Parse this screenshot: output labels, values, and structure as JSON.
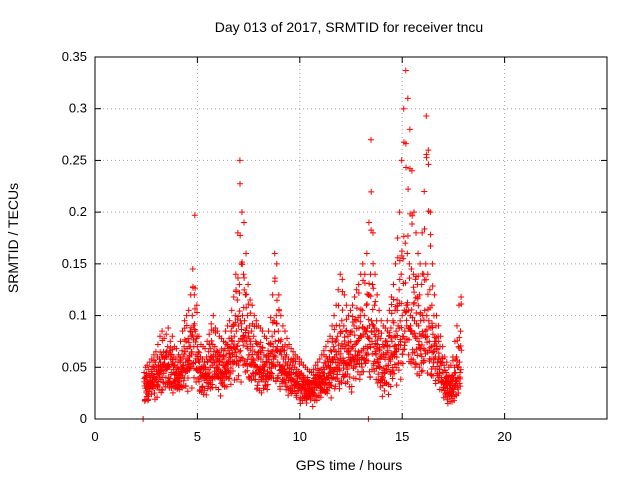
{
  "chart_data": {
    "type": "scatter",
    "title": "Day 013 of 2017, SRMTID for receiver tncu",
    "xlabel": "GPS time / hours",
    "ylabel": "SRMTID / TECUs",
    "xlim": [
      0,
      25
    ],
    "ylim": [
      0,
      0.35
    ],
    "xticks": [
      0,
      5,
      10,
      15,
      20
    ],
    "xtick_labels": [
      "0",
      "5",
      "10",
      "15",
      "20"
    ],
    "yticks": [
      0,
      0.05,
      0.1,
      0.15,
      0.2,
      0.25,
      0.3,
      0.35
    ],
    "ytick_labels": [
      "0",
      "0.05",
      "0.1",
      "0.15",
      "0.2",
      "0.25",
      "0.3",
      "0.35"
    ],
    "grid": true,
    "marker": "+",
    "series": [
      {
        "name": "SRMTID",
        "color": "#ff0000",
        "x_start": 2.4,
        "x_step": 0.025,
        "values": [
          0.045,
          0.032,
          0.04,
          0.05,
          0.038,
          0.044,
          0.052,
          0.036,
          0.03,
          0.048,
          0.042,
          0.055,
          0.04,
          0.035,
          0.046,
          0.058,
          0.044,
          0.038,
          0.05,
          0.062,
          0.048,
          0.04,
          0.055,
          0.065,
          0.05,
          0.043,
          0.06,
          0.072,
          0.052,
          0.045,
          0.058,
          0.08,
          0.055,
          0.046,
          0.062,
          0.085,
          0.06,
          0.05,
          0.065,
          0.078,
          0.058,
          0.048,
          0.064,
          0.082,
          0.06,
          0.052,
          0.07,
          0.088,
          0.062,
          0.05,
          0.066,
          0.075,
          0.058,
          0.045,
          0.062,
          0.08,
          0.055,
          0.048,
          0.06,
          0.07,
          0.052,
          0.044,
          0.058,
          0.068,
          0.05,
          0.04,
          0.055,
          0.062,
          0.048,
          0.042,
          0.06,
          0.075,
          0.058,
          0.05,
          0.066,
          0.085,
          0.06,
          0.052,
          0.07,
          0.095,
          0.065,
          0.055,
          0.075,
          0.1,
          0.068,
          0.055,
          0.078,
          0.105,
          0.07,
          0.06,
          0.085,
          0.12,
          0.08,
          0.065,
          0.1,
          0.145,
          0.09,
          0.07,
          0.12,
          0.197,
          0.085,
          0.062,
          0.078,
          0.11,
          0.07,
          0.058,
          0.065,
          0.08,
          0.055,
          0.045,
          0.06,
          0.072,
          0.05,
          0.042,
          0.058,
          0.07,
          0.048,
          0.04,
          0.055,
          0.068,
          0.05,
          0.044,
          0.06,
          0.075,
          0.055,
          0.048,
          0.065,
          0.082,
          0.058,
          0.05,
          0.068,
          0.092,
          0.06,
          0.052,
          0.072,
          0.1,
          0.065,
          0.055,
          0.07,
          0.088,
          0.06,
          0.05,
          0.066,
          0.085,
          0.058,
          0.048,
          0.064,
          0.08,
          0.056,
          0.046,
          0.062,
          0.078,
          0.055,
          0.045,
          0.06,
          0.075,
          0.058,
          0.05,
          0.068,
          0.085,
          0.062,
          0.054,
          0.072,
          0.09,
          0.066,
          0.056,
          0.078,
          0.095,
          0.07,
          0.06,
          0.085,
          0.105,
          0.075,
          0.064,
          0.09,
          0.118,
          0.08,
          0.068,
          0.1,
          0.14,
          0.085,
          0.07,
          0.115,
          0.18,
          0.09,
          0.075,
          0.13,
          0.25,
          0.095,
          0.078,
          0.15,
          0.2,
          0.1,
          0.08,
          0.14,
          0.19,
          0.095,
          0.075,
          0.12,
          0.16,
          0.088,
          0.07,
          0.1,
          0.13,
          0.08,
          0.062,
          0.09,
          0.115,
          0.075,
          0.058,
          0.085,
          0.11,
          0.07,
          0.055,
          0.08,
          0.1,
          0.065,
          0.052,
          0.075,
          0.095,
          0.062,
          0.05,
          0.072,
          0.09,
          0.06,
          0.048,
          0.07,
          0.088,
          0.058,
          0.045,
          0.066,
          0.085,
          0.055,
          0.044,
          0.062,
          0.08,
          0.052,
          0.042,
          0.06,
          0.078,
          0.055,
          0.046,
          0.066,
          0.085,
          0.06,
          0.05,
          0.072,
          0.098,
          0.065,
          0.054,
          0.08,
          0.12,
          0.07,
          0.058,
          0.095,
          0.16,
          0.075,
          0.06,
          0.1,
          0.15,
          0.07,
          0.055,
          0.085,
          0.12,
          0.065,
          0.052,
          0.075,
          0.1,
          0.062,
          0.05,
          0.07,
          0.09,
          0.058,
          0.048,
          0.066,
          0.085,
          0.055,
          0.045,
          0.062,
          0.078,
          0.052,
          0.042,
          0.058,
          0.072,
          0.05,
          0.04,
          0.055,
          0.068,
          0.048,
          0.038,
          0.052,
          0.065,
          0.045,
          0.036,
          0.05,
          0.062,
          0.044,
          0.035,
          0.048,
          0.06,
          0.042,
          0.034,
          0.046,
          0.058,
          0.04,
          0.032,
          0.044,
          0.055,
          0.038,
          0.03,
          0.042,
          0.052,
          0.036,
          0.028,
          0.04,
          0.05,
          0.035,
          0.027,
          0.038,
          0.048,
          0.034,
          0.026,
          0.036,
          0.046,
          0.033,
          0.025,
          0.035,
          0.045,
          0.034,
          0.026,
          0.037,
          0.048,
          0.036,
          0.028,
          0.04,
          0.052,
          0.038,
          0.03,
          0.042,
          0.055,
          0.04,
          0.032,
          0.045,
          0.058,
          0.042,
          0.034,
          0.048,
          0.062,
          0.045,
          0.036,
          0.05,
          0.066,
          0.048,
          0.038,
          0.054,
          0.07,
          0.05,
          0.04,
          0.058,
          0.075,
          0.052,
          0.042,
          0.06,
          0.08,
          0.055,
          0.044,
          0.065,
          0.09,
          0.058,
          0.046,
          0.07,
          0.1,
          0.06,
          0.048,
          0.075,
          0.11,
          0.062,
          0.05,
          0.08,
          0.125,
          0.065,
          0.052,
          0.09,
          0.14,
          0.068,
          0.054,
          0.095,
          0.135,
          0.07,
          0.055,
          0.09,
          0.12,
          0.068,
          0.054,
          0.085,
          0.11,
          0.065,
          0.052,
          0.08,
          0.1,
          0.066,
          0.054,
          0.082,
          0.105,
          0.068,
          0.056,
          0.085,
          0.11,
          0.07,
          0.058,
          0.09,
          0.118,
          0.072,
          0.06,
          0.095,
          0.125,
          0.075,
          0.062,
          0.098,
          0.13,
          0.078,
          0.064,
          0.1,
          0.14,
          0.08,
          0.066,
          0.105,
          0.15,
          0.082,
          0.068,
          0.1,
          0.14,
          0.085,
          0.07,
          0.11,
          0.16,
          0.088,
          0.07,
          0.12,
          0.19,
          0.09,
          0.072,
          0.14,
          0.27,
          0.095,
          0.075,
          0.13,
          0.18,
          0.09,
          0.07,
          0.11,
          0.14,
          0.08,
          0.062,
          0.095,
          0.12,
          0.072,
          0.055,
          0.085,
          0.105,
          0.066,
          0.05,
          0.078,
          0.095,
          0.062,
          0.045,
          0.072,
          0.09,
          0.06,
          0.044,
          0.07,
          0.088,
          0.062,
          0.048,
          0.075,
          0.095,
          0.066,
          0.052,
          0.08,
          0.105,
          0.07,
          0.056,
          0.088,
          0.118,
          0.075,
          0.06,
          0.095,
          0.13,
          0.08,
          0.064,
          0.105,
          0.15,
          0.085,
          0.068,
          0.115,
          0.175,
          0.09,
          0.072,
          0.125,
          0.2,
          0.095,
          0.075,
          0.14,
          0.25,
          0.1,
          0.08,
          0.155,
          0.3,
          0.105,
          0.085,
          0.17,
          0.337,
          0.11,
          0.09,
          0.16,
          0.31,
          0.105,
          0.088,
          0.15,
          0.28,
          0.1,
          0.085,
          0.145,
          0.24,
          0.098,
          0.082,
          0.14,
          0.2,
          0.095,
          0.08,
          0.135,
          0.18,
          0.092,
          0.078,
          0.13,
          0.16,
          0.09,
          0.075,
          0.12,
          0.15,
          0.095,
          0.08,
          0.13,
          0.18,
          0.1,
          0.082,
          0.14,
          0.22,
          0.105,
          0.085,
          0.15,
          0.293,
          0.1,
          0.08,
          0.14,
          0.26,
          0.095,
          0.075,
          0.125,
          0.2,
          0.088,
          0.07,
          0.11,
          0.15,
          0.082,
          0.065,
          0.1,
          0.12,
          0.075,
          0.06,
          0.09,
          0.1,
          0.068,
          0.055,
          0.08,
          0.09,
          0.06,
          0.048,
          0.07,
          0.08,
          0.052,
          0.04,
          0.06,
          0.07,
          0.045,
          0.035,
          0.052,
          0.06,
          0.04,
          0.03,
          0.045,
          0.055,
          0.036,
          0.026,
          0.04,
          0.05,
          0.034,
          0.025,
          0.038,
          0.052,
          0.036,
          0.028,
          0.042,
          0.06,
          0.04,
          0.032,
          0.05,
          0.075,
          0.045,
          0.036,
          0.06,
          0.09,
          0.05,
          0.04,
          0.07,
          0.11,
          0.055,
          0.045,
          0.085,
          0.118
        ]
      }
    ],
    "isolated_points": [
      {
        "x": 2.35,
        "y": 0.0
      },
      {
        "x": 13.35,
        "y": 0.0
      }
    ]
  }
}
